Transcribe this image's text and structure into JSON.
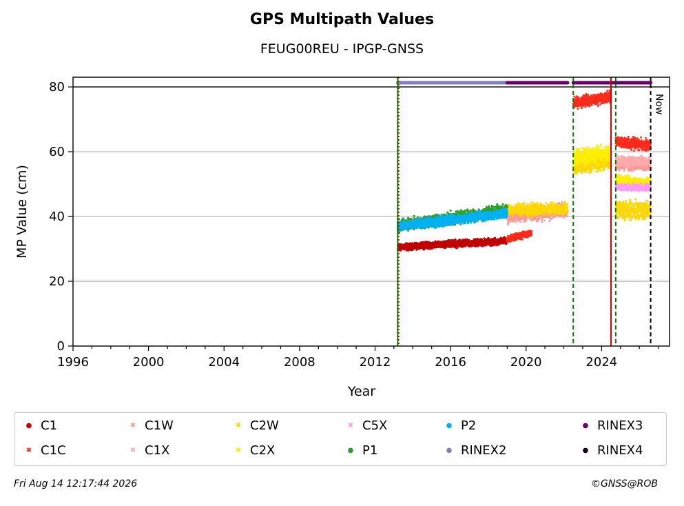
{
  "chart_data": {
    "type": "scatter",
    "title": "GPS Multipath Values",
    "subtitle": "FEUG00REU - IPGP-GNSS",
    "xlabel": "Year",
    "ylabel": "MP Value (cm)",
    "xlim": [
      1996,
      2027.6
    ],
    "ylim": [
      0,
      83
    ],
    "x_ticks": [
      1996,
      2000,
      2004,
      2008,
      2012,
      2016,
      2020,
      2024
    ],
    "y_ticks": [
      0,
      20,
      40,
      60,
      80
    ],
    "grid": "horizontal",
    "reference_line_y": 80,
    "now_label": "Now",
    "now_x": 2026.6,
    "vertical_lines": [
      {
        "x": 2013.2,
        "color": "#008000",
        "style": "solid"
      },
      {
        "x": 2013.25,
        "color": "#cc0000",
        "style": "dotted"
      },
      {
        "x": 2022.5,
        "color": "#008000",
        "style": "dashed"
      },
      {
        "x": 2024.5,
        "color": "#cc0000",
        "style": "solid"
      },
      {
        "x": 2024.75,
        "color": "#008000",
        "style": "dashed"
      },
      {
        "x": 2026.6,
        "color": "#000000",
        "style": "dashed"
      }
    ],
    "series": [
      {
        "name": "C1",
        "color": "#c00000",
        "marker": "dot",
        "segments": [
          {
            "x0": 2013.2,
            "x1": 2019.0,
            "y0": 30.5,
            "y1": 32.5,
            "spread": 1.5
          }
        ]
      },
      {
        "name": "C1C",
        "color": "#ff2a1a",
        "marker": "x",
        "segments": [
          {
            "x0": 2019.0,
            "x1": 2020.3,
            "y0": 33.0,
            "y1": 35.0,
            "spread": 1.5
          },
          {
            "x0": 2022.5,
            "x1": 2024.5,
            "y0": 75.0,
            "y1": 77.0,
            "spread": 2.5
          },
          {
            "x0": 2024.75,
            "x1": 2026.6,
            "y0": 63.0,
            "y1": 62.0,
            "spread": 2.5
          }
        ]
      },
      {
        "name": "C1W",
        "color": "#ff9999",
        "marker": "x",
        "segments": [
          {
            "x0": 2019.0,
            "x1": 2022.2,
            "y0": 40.0,
            "y1": 42.0,
            "spread": 3.0
          },
          {
            "x0": 2024.75,
            "x1": 2026.6,
            "y0": 56.0,
            "y1": 56.0,
            "spread": 2.5
          }
        ]
      },
      {
        "name": "C1X",
        "color": "#ffaaaa",
        "marker": "x",
        "segments": [
          {
            "x0": 2024.75,
            "x1": 2026.6,
            "y0": 57.0,
            "y1": 57.0,
            "spread": 2.0
          }
        ]
      },
      {
        "name": "C2W",
        "color": "#ffd700",
        "marker": "x",
        "segments": [
          {
            "x0": 2019.0,
            "x1": 2022.2,
            "y0": 42.0,
            "y1": 42.5,
            "spread": 2.5
          },
          {
            "x0": 2022.5,
            "x1": 2024.5,
            "y0": 55.0,
            "y1": 57.0,
            "spread": 3.0
          },
          {
            "x0": 2024.75,
            "x1": 2026.6,
            "y0": 42.0,
            "y1": 42.0,
            "spread": 4.0
          }
        ]
      },
      {
        "name": "C2X",
        "color": "#ffee00",
        "marker": "x",
        "segments": [
          {
            "x0": 2022.5,
            "x1": 2024.5,
            "y0": 58.0,
            "y1": 60.0,
            "spread": 3.5
          },
          {
            "x0": 2024.75,
            "x1": 2026.6,
            "y0": 51.0,
            "y1": 50.0,
            "spread": 2.5
          }
        ]
      },
      {
        "name": "C5X",
        "color": "#ff99ff",
        "marker": "x",
        "segments": [
          {
            "x0": 2024.75,
            "x1": 2026.6,
            "y0": 49.0,
            "y1": 49.0,
            "spread": 1.5
          }
        ]
      },
      {
        "name": "P1",
        "color": "#2ca02c",
        "marker": "dot",
        "segments": [
          {
            "x0": 2013.2,
            "x1": 2019.0,
            "y0": 37.0,
            "y1": 42.0,
            "spread": 2.5
          }
        ]
      },
      {
        "name": "P2",
        "color": "#00b0f0",
        "marker": "dot",
        "segments": [
          {
            "x0": 2013.2,
            "x1": 2019.0,
            "y0": 37.0,
            "y1": 41.0,
            "spread": 2.0
          }
        ]
      }
    ],
    "rinex_bars": [
      {
        "name": "RINEX2",
        "color": "#8080c0",
        "x0": 2013.2,
        "x1": 2019.0,
        "y": 81.3
      },
      {
        "name": "RINEX3",
        "color": "#660066",
        "x0": 2019.0,
        "x1": 2022.2,
        "y": 81.3
      },
      {
        "name": "RINEX3",
        "color": "#660066",
        "x0": 2022.5,
        "x1": 2026.6,
        "y": 81.3
      }
    ]
  },
  "legend": {
    "items": [
      {
        "label": "C1",
        "color": "#c00000",
        "symbol": "●"
      },
      {
        "label": "C1W",
        "color": "#ff9999",
        "symbol": "✖"
      },
      {
        "label": "C2W",
        "color": "#ffd700",
        "symbol": "✖"
      },
      {
        "label": "C5X",
        "color": "#ff99ff",
        "symbol": "✖"
      },
      {
        "label": "P2",
        "color": "#00b0f0",
        "symbol": "●"
      },
      {
        "label": "RINEX3",
        "color": "#660066",
        "symbol": "●"
      },
      {
        "label": "C1C",
        "color": "#ff2a1a",
        "symbol": "✖"
      },
      {
        "label": "C1X",
        "color": "#ffaaaa",
        "symbol": "✖"
      },
      {
        "label": "C2X",
        "color": "#ffee00",
        "symbol": "✖"
      },
      {
        "label": "P1",
        "color": "#2ca02c",
        "symbol": "●"
      },
      {
        "label": "RINEX2",
        "color": "#8080c0",
        "symbol": "●"
      },
      {
        "label": "RINEX4",
        "color": "#1a0022",
        "symbol": "●"
      }
    ]
  },
  "footer": {
    "timestamp": "Fri Aug 14 12:17:44 2026",
    "copyright": "©GNSS@ROB"
  }
}
